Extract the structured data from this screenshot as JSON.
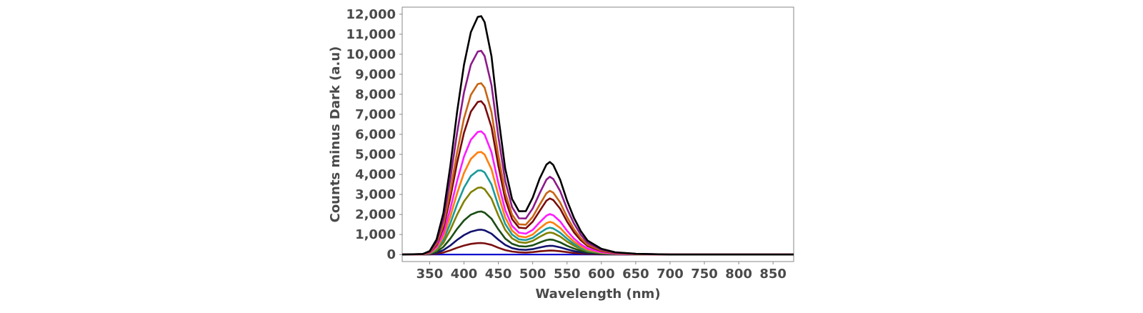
{
  "chart_data": {
    "type": "line",
    "title": "",
    "xlabel": "Wavelength (nm)",
    "ylabel": "Counts minus Dark (a.u)",
    "xlim": [
      310,
      880
    ],
    "ylim": [
      -350,
      12350
    ],
    "x_ticks": [
      350,
      400,
      450,
      500,
      550,
      600,
      650,
      700,
      750,
      800,
      850
    ],
    "x_tick_labels": [
      "350",
      "400",
      "450",
      "500",
      "550",
      "600",
      "650",
      "700",
      "750",
      "800",
      "850"
    ],
    "y_ticks": [
      0,
      1000,
      2000,
      3000,
      4000,
      5000,
      6000,
      7000,
      8000,
      9000,
      10000,
      11000,
      12000
    ],
    "y_tick_labels": [
      "0",
      "1,000",
      "2,000",
      "3,000",
      "4,000",
      "5,000",
      "6,000",
      "7,000",
      "8,000",
      "9,000",
      "10,000",
      "11,000",
      "12,000"
    ],
    "grid": false,
    "legend": "none",
    "x": [
      310,
      340,
      350,
      360,
      370,
      380,
      390,
      400,
      410,
      420,
      425,
      430,
      440,
      450,
      460,
      470,
      480,
      490,
      500,
      510,
      520,
      525,
      530,
      540,
      550,
      560,
      570,
      580,
      600,
      620,
      650,
      700,
      750,
      800,
      850,
      880
    ],
    "series": [
      {
        "color": "#0000cc",
        "values": [
          0,
          0,
          0,
          0,
          0,
          0,
          0,
          0,
          0,
          0,
          0,
          0,
          0,
          0,
          0,
          0,
          0,
          0,
          0,
          0,
          0,
          0,
          0,
          0,
          0,
          0,
          0,
          0,
          0,
          0,
          0,
          0,
          0,
          0,
          0,
          0
        ]
      },
      {
        "color": "#7b1010",
        "values": [
          0,
          2,
          10,
          40,
          100,
          210,
          340,
          450,
          530,
          570,
          575,
          560,
          480,
          340,
          220,
          150,
          110,
          100,
          120,
          160,
          190,
          200,
          195,
          165,
          120,
          80,
          50,
          30,
          12,
          5,
          2,
          0,
          0,
          0,
          0,
          0
        ]
      },
      {
        "color": "#12126e",
        "values": [
          0,
          4,
          20,
          80,
          220,
          450,
          730,
          970,
          1140,
          1230,
          1240,
          1210,
          1040,
          740,
          480,
          320,
          250,
          230,
          270,
          350,
          420,
          440,
          430,
          360,
          260,
          175,
          110,
          65,
          28,
          12,
          4,
          0,
          0,
          0,
          0,
          0
        ]
      },
      {
        "color": "#1b4d14",
        "values": [
          0,
          6,
          35,
          140,
          380,
          790,
          1280,
          1700,
          1990,
          2130,
          2150,
          2090,
          1790,
          1260,
          800,
          540,
          420,
          400,
          460,
          600,
          720,
          750,
          730,
          610,
          440,
          300,
          190,
          110,
          48,
          20,
          7,
          0,
          0,
          0,
          0,
          0
        ]
      },
      {
        "color": "#808000",
        "values": [
          0,
          8,
          50,
          210,
          580,
          1230,
          1990,
          2650,
          3110,
          3330,
          3350,
          3260,
          2790,
          1950,
          1230,
          810,
          620,
          580,
          680,
          880,
          1060,
          1100,
          1070,
          900,
          650,
          440,
          280,
          165,
          70,
          28,
          10,
          0,
          0,
          0,
          0,
          0
        ]
      },
      {
        "color": "#1a9a9a",
        "values": [
          0,
          10,
          60,
          265,
          730,
          1550,
          2510,
          3340,
          3920,
          4190,
          4200,
          4100,
          3500,
          2440,
          1530,
          1000,
          760,
          720,
          830,
          1070,
          1290,
          1340,
          1300,
          1090,
          790,
          530,
          340,
          200,
          85,
          34,
          12,
          0,
          0,
          0,
          0,
          0
        ]
      },
      {
        "color": "#ff7f0e",
        "values": [
          0,
          12,
          75,
          320,
          890,
          1890,
          3060,
          4070,
          4770,
          5100,
          5120,
          4990,
          4260,
          2970,
          1850,
          1200,
          910,
          860,
          1000,
          1300,
          1570,
          1630,
          1580,
          1330,
          960,
          650,
          410,
          240,
          100,
          40,
          14,
          0,
          0,
          0,
          0,
          0
        ]
      },
      {
        "color": "#ff1aff",
        "values": [
          0,
          14,
          90,
          390,
          1070,
          2270,
          3680,
          4890,
          5730,
          6120,
          6150,
          5990,
          5110,
          3560,
          2220,
          1430,
          1090,
          1040,
          1230,
          1600,
          1940,
          2020,
          1960,
          1650,
          1190,
          800,
          510,
          300,
          125,
          50,
          18,
          0,
          0,
          0,
          0,
          0
        ]
      },
      {
        "color": "#7a0a0a",
        "values": [
          0,
          18,
          110,
          480,
          1330,
          2820,
          4580,
          6080,
          7130,
          7620,
          7650,
          7450,
          6360,
          4430,
          2760,
          1770,
          1340,
          1310,
          1640,
          2170,
          2690,
          2800,
          2720,
          2290,
          1650,
          1110,
          710,
          420,
          175,
          70,
          25,
          0,
          0,
          0,
          0,
          0
        ]
      },
      {
        "color": "#c86414",
        "values": [
          0,
          20,
          125,
          540,
          1490,
          3160,
          5120,
          6800,
          7970,
          8510,
          8550,
          8330,
          7110,
          4950,
          3090,
          1990,
          1510,
          1490,
          1880,
          2480,
          3060,
          3180,
          3090,
          2600,
          1880,
          1270,
          810,
          480,
          200,
          80,
          28,
          0,
          0,
          0,
          0,
          0
        ]
      },
      {
        "color": "#8b1a8b",
        "values": [
          0,
          24,
          150,
          640,
          1770,
          3760,
          6090,
          8090,
          9480,
          10130,
          10170,
          9910,
          8460,
          5890,
          3670,
          2370,
          1810,
          1800,
          2300,
          3050,
          3740,
          3880,
          3770,
          3170,
          2290,
          1550,
          990,
          580,
          245,
          98,
          34,
          0,
          0,
          0,
          0,
          0
        ]
      },
      {
        "color": "#000000",
        "values": [
          0,
          28,
          175,
          750,
          2070,
          4400,
          7130,
          9470,
          11100,
          11860,
          11900,
          11600,
          9900,
          6900,
          4290,
          2770,
          2160,
          2170,
          2840,
          3780,
          4490,
          4620,
          4470,
          3740,
          2700,
          1830,
          1170,
          690,
          290,
          115,
          40,
          0,
          0,
          0,
          0,
          0
        ]
      }
    ]
  }
}
